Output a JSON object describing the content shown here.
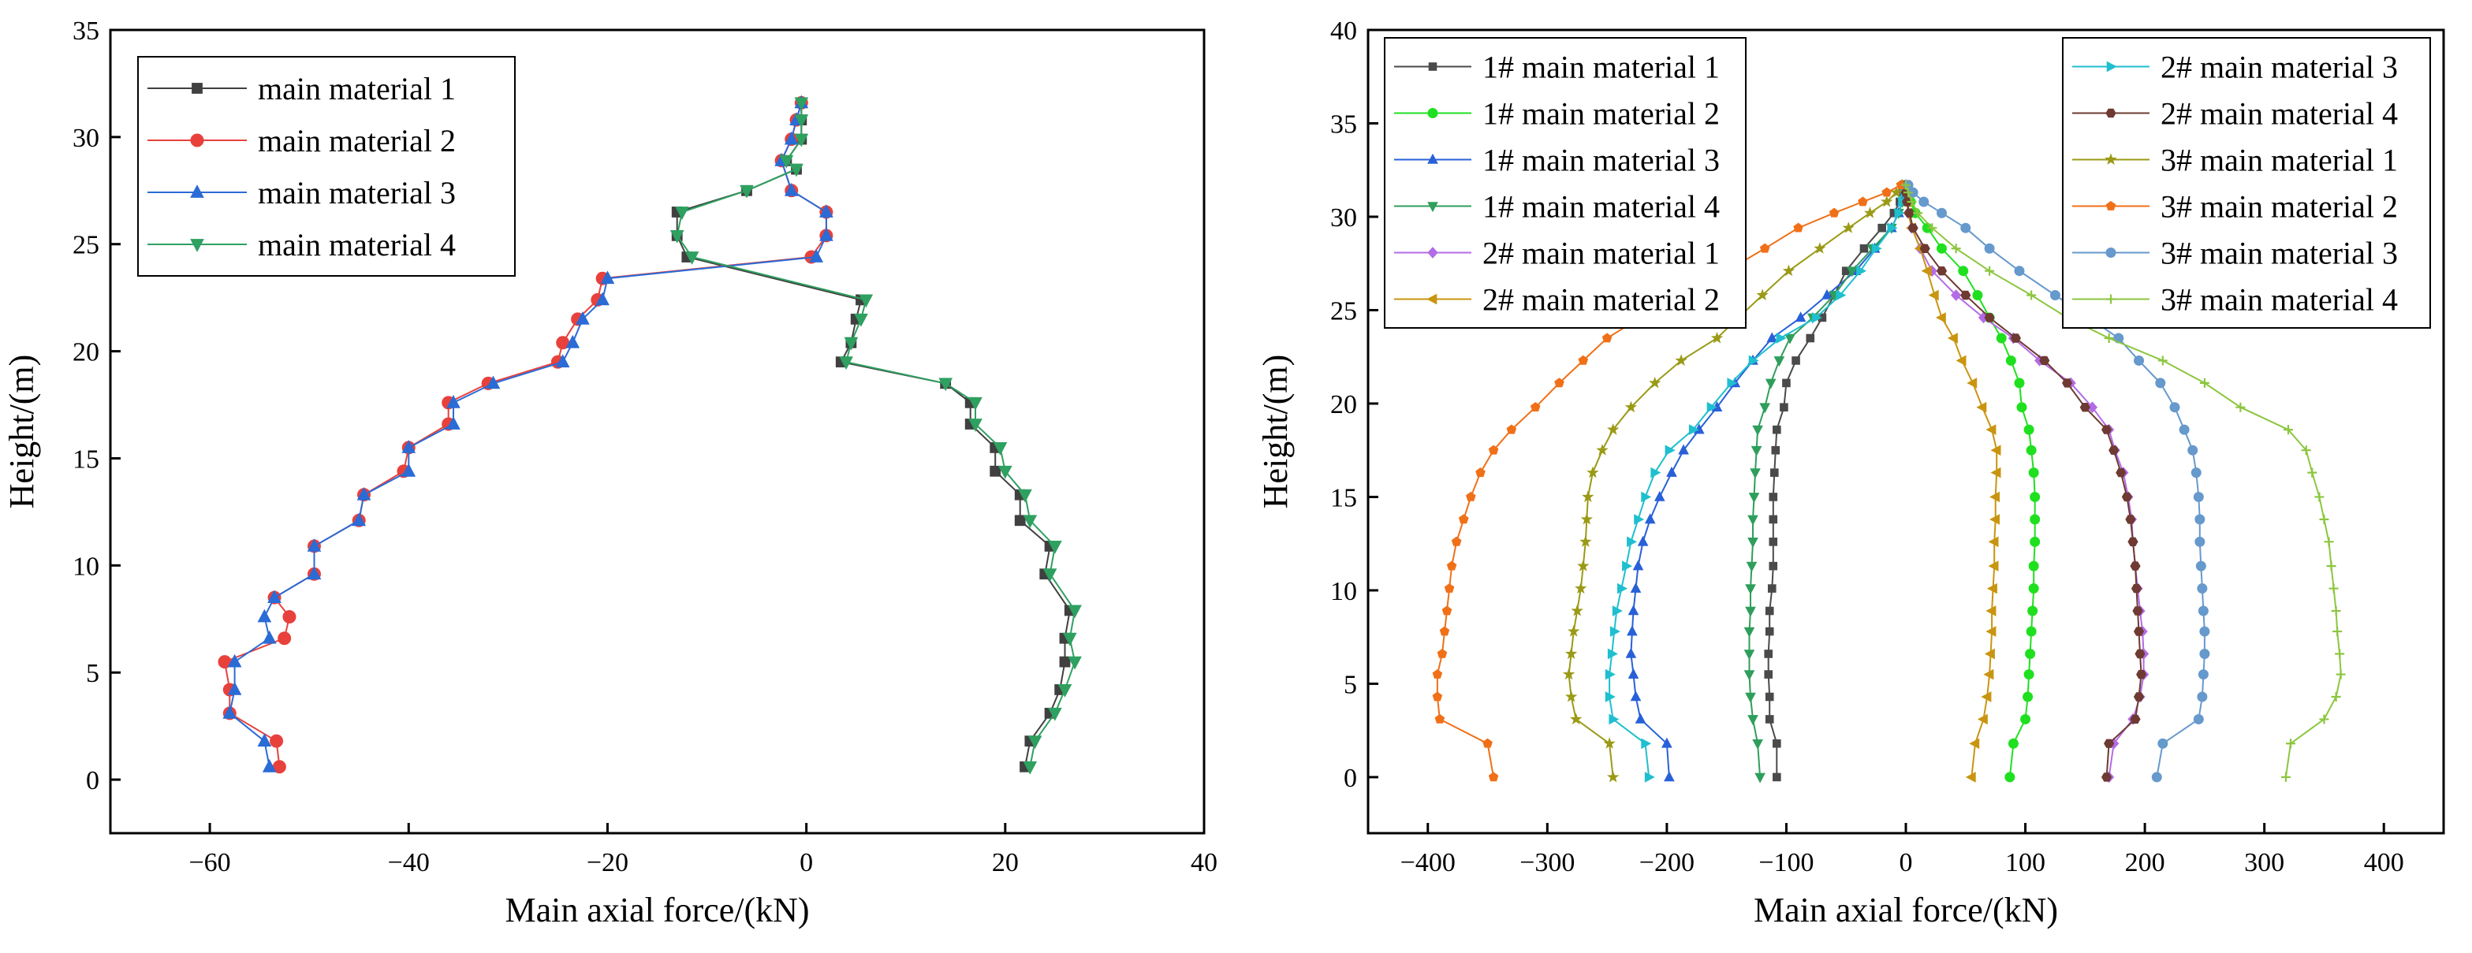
{
  "chart_data": [
    {
      "type": "line",
      "xlabel": "Main axial force/(kN)",
      "ylabel": "Height/(m)",
      "xlim": [
        -70,
        40
      ],
      "ylim": [
        -2.5,
        35
      ],
      "xticks": [
        -60,
        -40,
        -20,
        0,
        20,
        40
      ],
      "yticks": [
        0,
        5,
        10,
        15,
        20,
        25,
        30,
        35
      ],
      "legend_position": "top-left",
      "series": [
        {
          "name": "main material 1",
          "color": "#404040",
          "marker": "square",
          "x": [
            22,
            22.5,
            24.5,
            25.5,
            26,
            26,
            26.5,
            24,
            24.5,
            21.5,
            21.5,
            19,
            19,
            16.5,
            16.5,
            14,
            3.5,
            4.5,
            5,
            5.5,
            -12,
            -13,
            -13,
            -6,
            -1,
            -2,
            -0.5,
            -0.5,
            -0.5
          ],
          "y": [
            0.6,
            1.8,
            3.1,
            4.2,
            5.5,
            6.6,
            7.9,
            9.6,
            10.9,
            12.1,
            13.3,
            14.4,
            15.5,
            16.6,
            17.6,
            18.5,
            19.5,
            20.4,
            21.5,
            22.4,
            24.4,
            25.4,
            26.5,
            27.5,
            28.5,
            28.9,
            29.9,
            30.8,
            31.6
          ]
        },
        {
          "name": "main material 2",
          "color": "#e8413c",
          "marker": "circle",
          "x": [
            -53,
            -53.3,
            -58,
            -58,
            -58.5,
            -52.5,
            -52,
            -53.5,
            -49.5,
            -49.5,
            -45,
            -44.5,
            -40.5,
            -40,
            -36,
            -36,
            -32,
            -25,
            -24.5,
            -23,
            -21,
            -20.5,
            0.5,
            2,
            2,
            -1.5,
            -2.5,
            -1.5,
            -1,
            -0.5
          ],
          "y": [
            0.6,
            1.8,
            3.1,
            4.2,
            5.5,
            6.6,
            7.6,
            8.5,
            9.6,
            10.9,
            12.1,
            13.3,
            14.4,
            15.5,
            16.6,
            17.6,
            18.5,
            19.5,
            20.4,
            21.5,
            22.4,
            23.4,
            24.4,
            25.4,
            26.5,
            27.5,
            28.9,
            29.9,
            30.8,
            31.6
          ]
        },
        {
          "name": "main material 3",
          "color": "#2a6bd6",
          "marker": "triangle-up",
          "x": [
            -54,
            -54.5,
            -58,
            -57.5,
            -57.5,
            -54,
            -54.5,
            -53.5,
            -49.5,
            -49.5,
            -45,
            -44.5,
            -40,
            -40,
            -35.5,
            -35.5,
            -31.5,
            -24.5,
            -23.5,
            -22.5,
            -20.5,
            -20,
            1,
            2,
            2,
            -1.5,
            -2.5,
            -1.5,
            -1,
            -0.5
          ],
          "y": [
            0.6,
            1.8,
            3.1,
            4.2,
            5.5,
            6.6,
            7.6,
            8.5,
            9.6,
            10.9,
            12.1,
            13.3,
            14.4,
            15.5,
            16.6,
            17.6,
            18.5,
            19.5,
            20.4,
            21.5,
            22.4,
            23.4,
            24.4,
            25.4,
            26.5,
            27.5,
            28.9,
            29.9,
            30.8,
            31.6
          ]
        },
        {
          "name": "main material 4",
          "color": "#2ea060",
          "marker": "triangle-down",
          "x": [
            22.5,
            23,
            25,
            26,
            27,
            26.5,
            27,
            24.5,
            25,
            22.5,
            22,
            20,
            19.5,
            17,
            17,
            14,
            4,
            4.5,
            5.5,
            6,
            -11.5,
            -13,
            -12.5,
            -6,
            -1,
            -2,
            -0.5,
            -0.5,
            -0.5
          ],
          "y": [
            0.6,
            1.8,
            3.1,
            4.2,
            5.5,
            6.6,
            7.9,
            9.6,
            10.9,
            12.1,
            13.3,
            14.4,
            15.5,
            16.6,
            17.6,
            18.5,
            19.5,
            20.4,
            21.5,
            22.4,
            24.4,
            25.4,
            26.5,
            27.5,
            28.5,
            28.9,
            29.9,
            30.8,
            31.6
          ]
        }
      ]
    },
    {
      "type": "line",
      "xlabel": "Main axial force/(kN)",
      "ylabel": "Height/(m)",
      "xlim": [
        -450,
        450
      ],
      "ylim": [
        -3,
        40
      ],
      "xticks": [
        -400,
        -300,
        -200,
        -100,
        0,
        100,
        200,
        300,
        400
      ],
      "yticks": [
        0,
        5,
        10,
        15,
        20,
        25,
        30,
        35,
        40
      ],
      "legend_position": "top-left and top-right",
      "heights": [
        0,
        1.8,
        3.1,
        4.3,
        5.5,
        6.6,
        7.8,
        8.9,
        10.1,
        11.3,
        12.6,
        13.8,
        15.0,
        16.3,
        17.5,
        18.6,
        19.8,
        21.1,
        22.3,
        23.5,
        24.6,
        25.8,
        27.1,
        28.3,
        29.4,
        30.2,
        30.8,
        31.3,
        31.7
      ],
      "series": [
        {
          "name": "1# main material 1",
          "color": "#4a4a4a",
          "marker": "square",
          "x": [
            -108,
            -108,
            -114,
            -114,
            -115,
            -115,
            -114,
            -114,
            -112,
            -111,
            -111,
            -111,
            -111,
            -110,
            -109,
            -108,
            -102,
            -100,
            -92,
            -80,
            -70,
            -60,
            -50,
            -35,
            -20,
            -10,
            -5,
            -2,
            0
          ]
        },
        {
          "name": "1# main material 2",
          "color": "#1fe01f",
          "marker": "circle",
          "x": [
            87,
            90,
            100,
            102,
            103,
            104,
            105,
            106,
            107,
            107,
            108,
            108,
            108,
            107,
            105,
            103,
            97,
            95,
            88,
            80,
            70,
            60,
            48,
            30,
            18,
            8,
            4,
            2,
            0
          ]
        },
        {
          "name": "1# main material 3",
          "color": "#2860d8",
          "marker": "triangle-up",
          "x": [
            -198,
            -200,
            -222,
            -226,
            -228,
            -230,
            -229,
            -228,
            -226,
            -224,
            -220,
            -214,
            -206,
            -196,
            -186,
            -173,
            -158,
            -143,
            -128,
            -112,
            -88,
            -66,
            -42,
            -26,
            -12,
            -6,
            -3,
            -1,
            0
          ]
        },
        {
          "name": "1# main material 4",
          "color": "#2f9e5c",
          "marker": "triangle-down",
          "x": [
            -122,
            -124,
            -128,
            -130,
            -131,
            -131,
            -131,
            -130,
            -130,
            -129,
            -128,
            -128,
            -127,
            -126,
            -125,
            -124,
            -118,
            -113,
            -106,
            -97,
            -78,
            -60,
            -45,
            -28,
            -12,
            -6,
            -3,
            -1,
            0
          ]
        },
        {
          "name": "2# main material 1",
          "color": "#b36be6",
          "marker": "diamond",
          "x": [
            170,
            174,
            190,
            196,
            199,
            199,
            198,
            196,
            194,
            192,
            190,
            189,
            186,
            182,
            175,
            170,
            156,
            138,
            112,
            90,
            65,
            42,
            22,
            12,
            5,
            2,
            1,
            0,
            0
          ]
        },
        {
          "name": "2# main material 2",
          "color": "#c99510",
          "marker": "triangle-left",
          "x": [
            55,
            58,
            65,
            68,
            70,
            71,
            72,
            72,
            73,
            74,
            74,
            75,
            75,
            76,
            76,
            72,
            64,
            56,
            47,
            40,
            30,
            24,
            18,
            12,
            5,
            2,
            1,
            0,
            0
          ]
        },
        {
          "name": "2# main material 3",
          "color": "#1fbfcf",
          "marker": "triangle-right",
          "x": [
            -215,
            -218,
            -245,
            -248,
            -248,
            -246,
            -244,
            -242,
            -238,
            -234,
            -230,
            -224,
            -218,
            -210,
            -198,
            -178,
            -163,
            -146,
            -128,
            -105,
            -75,
            -55,
            -38,
            -25,
            -12,
            -6,
            -3,
            -1,
            0
          ]
        },
        {
          "name": "2# main material 4",
          "color": "#6e3a32",
          "marker": "hexagon",
          "x": [
            168,
            170,
            192,
            195,
            197,
            196,
            195,
            194,
            193,
            192,
            190,
            188,
            185,
            180,
            174,
            168,
            150,
            135,
            116,
            92,
            70,
            50,
            30,
            16,
            6,
            3,
            1,
            0,
            0
          ]
        },
        {
          "name": "3# main material 1",
          "color": "#9a9a16",
          "marker": "star",
          "x": [
            -245,
            -248,
            -276,
            -280,
            -282,
            -280,
            -278,
            -275,
            -272,
            -270,
            -268,
            -267,
            -266,
            -262,
            -254,
            -245,
            -230,
            -210,
            -188,
            -158,
            -140,
            -120,
            -98,
            -72,
            -48,
            -30,
            -16,
            -8,
            -3
          ]
        },
        {
          "name": "3# main material 2",
          "color": "#f07018",
          "marker": "pentagon",
          "x": [
            -345,
            -350,
            -390,
            -392,
            -392,
            -388,
            -386,
            -384,
            -382,
            -380,
            -376,
            -370,
            -364,
            -356,
            -345,
            -330,
            -310,
            -290,
            -270,
            -250,
            -222,
            -188,
            -150,
            -118,
            -90,
            -60,
            -36,
            -16,
            -4
          ]
        },
        {
          "name": "3# main material 3",
          "color": "#6699cc",
          "marker": "sphere",
          "x": [
            210,
            215,
            245,
            248,
            249,
            250,
            250,
            249,
            248,
            247,
            246,
            246,
            245,
            243,
            240,
            233,
            225,
            213,
            195,
            178,
            153,
            125,
            95,
            70,
            50,
            30,
            15,
            6,
            2
          ]
        },
        {
          "name": "3# main material 4",
          "color": "#8cc63f",
          "marker": "plus",
          "x": [
            318,
            322,
            350,
            360,
            364,
            363,
            361,
            360,
            358,
            356,
            354,
            350,
            346,
            340,
            335,
            320,
            280,
            250,
            215,
            170,
            135,
            105,
            70,
            42,
            22,
            10,
            5,
            2,
            0
          ]
        }
      ]
    }
  ]
}
